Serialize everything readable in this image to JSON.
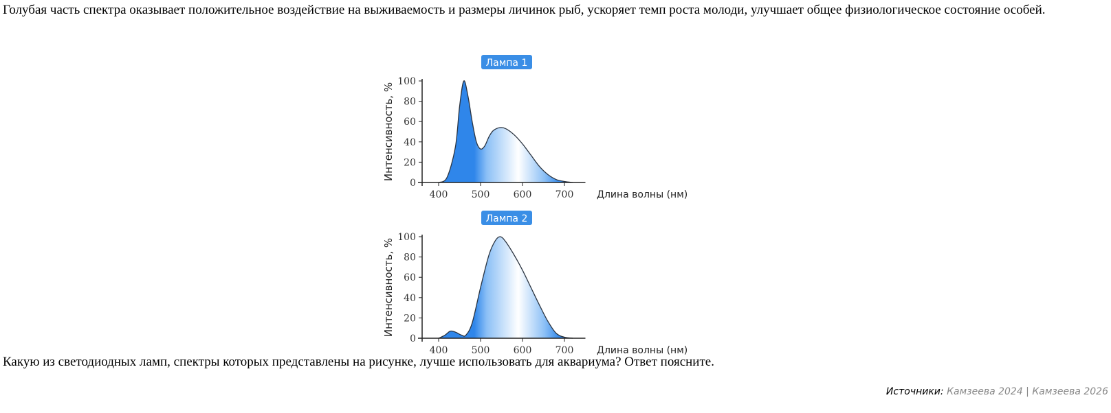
{
  "intro": "Голубая часть спектра оказывает положительное воздействие на выживаемость и размеры личинок рыб, ускоряет темп роста молоди, улучшает общее физиологическое состояние особей.",
  "question": "Какую из светодиодных ламп, спектры которых представлены на рисунке, лучше использовать для аквариума? Ответ поясните.",
  "sources": {
    "label": "Источники:",
    "items": "Камзеева 2024 | Камзеева 2026"
  },
  "colors": {
    "accent": "#3a8ee6",
    "fill_blue": "#2f86ea",
    "line": "#2b3440"
  },
  "chart_data": [
    {
      "type": "area",
      "title": "Лампа 1",
      "xlabel": "Длина волны (нм)",
      "ylabel": "Интенсивность, %",
      "xlim": [
        362,
        750
      ],
      "ylim": [
        0,
        100
      ],
      "xticks": [
        400,
        500,
        600,
        700
      ],
      "yticks": [
        0,
        20,
        40,
        60,
        80,
        100
      ],
      "grid": false,
      "x": [
        400,
        420,
        440,
        450,
        460,
        470,
        480,
        490,
        500,
        510,
        520,
        530,
        545,
        560,
        580,
        600,
        620,
        640,
        660,
        680,
        700,
        720
      ],
      "y": [
        0,
        5,
        35,
        75,
        100,
        85,
        60,
        40,
        33,
        36,
        45,
        51,
        54,
        53,
        47,
        38,
        27,
        16,
        8,
        3,
        1,
        0
      ]
    },
    {
      "type": "area",
      "title": "Лампа 2",
      "xlabel": "Длина волны (нм)",
      "ylabel": "Интенсивность, %",
      "xlim": [
        362,
        750
      ],
      "ylim": [
        0,
        100
      ],
      "xticks": [
        400,
        500,
        600,
        700
      ],
      "yticks": [
        0,
        20,
        40,
        60,
        80,
        100
      ],
      "grid": false,
      "x": [
        400,
        415,
        428,
        440,
        455,
        465,
        480,
        500,
        520,
        535,
        547,
        560,
        580,
        600,
        620,
        640,
        660,
        680,
        700,
        720
      ],
      "y": [
        0,
        3,
        7,
        6,
        3,
        3,
        15,
        50,
        82,
        96,
        100,
        95,
        82,
        67,
        50,
        33,
        17,
        5,
        1,
        0
      ]
    }
  ]
}
